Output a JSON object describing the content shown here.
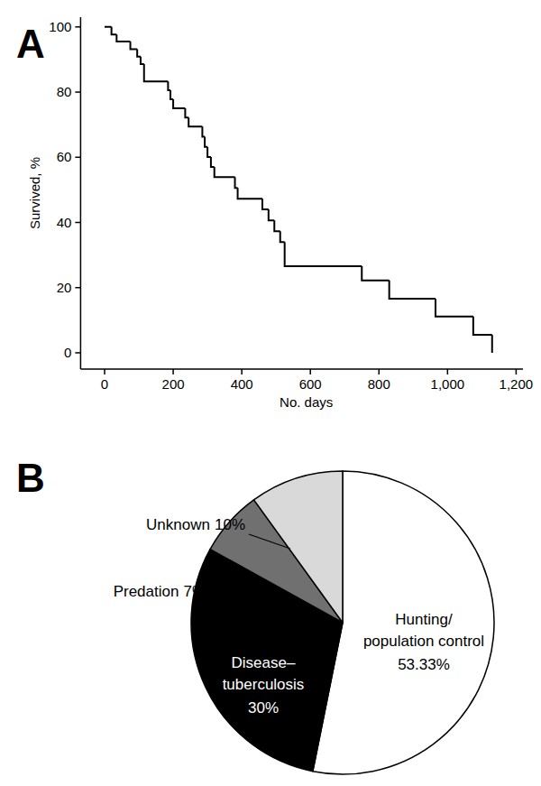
{
  "chart_data": [
    {
      "type": "line",
      "line_style": "step",
      "title": "A",
      "xlabel": "No. days",
      "ylabel": "Survived, %",
      "x": [
        0,
        20,
        35,
        75,
        95,
        105,
        115,
        185,
        192,
        200,
        235,
        245,
        285,
        292,
        300,
        310,
        320,
        380,
        388,
        460,
        478,
        495,
        512,
        525,
        750,
        830,
        965,
        1075,
        1130
      ],
      "values": [
        100,
        97.7,
        95.5,
        93.2,
        90.9,
        88.6,
        83.3,
        80.6,
        77.8,
        75,
        72.2,
        69.4,
        66.3,
        63.2,
        60.1,
        57,
        53.9,
        50.6,
        47.3,
        44,
        40.6,
        37.3,
        34,
        26.6,
        22.2,
        16.6,
        11.1,
        5.5,
        0
      ],
      "color": "#000000",
      "xlim": [
        -70,
        1220
      ],
      "xticks": [
        0,
        200,
        400,
        600,
        800,
        {
          "value": 1000,
          "label": "1,000"
        },
        {
          "value": 1200,
          "label": "1,200"
        }
      ],
      "ylim": [
        -5,
        103
      ],
      "yticks": [
        0,
        20,
        40,
        60,
        80,
        100
      ],
      "grid": false
    },
    {
      "type": "pie",
      "title": "B",
      "categories": [
        "Hunting/\npopulation control",
        "Disease–\ntuberculosis",
        "Predation",
        "Unknown"
      ],
      "values": [
        53.33,
        30,
        7,
        10
      ],
      "value_labels": [
        "53.33%",
        "30%",
        "7%",
        "10%"
      ],
      "colors": [
        "#ffffff",
        "#000000",
        "#707070",
        "#d9d9d9"
      ],
      "data_labels": true
    }
  ]
}
